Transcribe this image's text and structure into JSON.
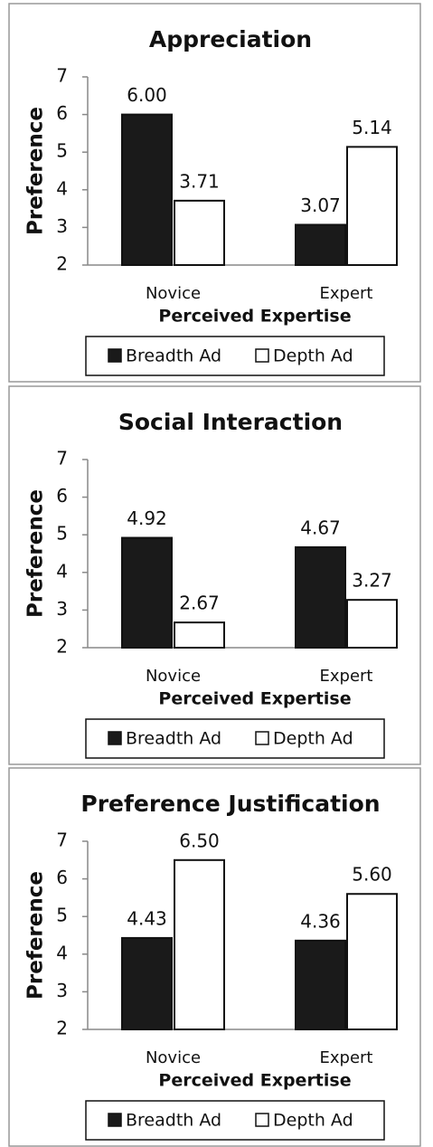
{
  "chart_data": [
    {
      "type": "bar",
      "title": "Appreciation",
      "x_label": "Perceived Expertise",
      "y_label": "Preference",
      "categories": [
        "Novice",
        "Expert"
      ],
      "series": [
        {
          "name": "Breadth Ad",
          "color": "#1a1a1a",
          "values": [
            6.0,
            3.07
          ],
          "value_labels": [
            "6.00",
            "3.07"
          ]
        },
        {
          "name": "Depth Ad",
          "color": "#ffffff",
          "values": [
            3.71,
            5.14
          ],
          "value_labels": [
            "3.71",
            "5.14"
          ]
        }
      ],
      "ylim": [
        2,
        7
      ],
      "yticks": [
        2,
        3,
        4,
        5,
        6,
        7
      ],
      "grid": false,
      "legend": "bottom"
    },
    {
      "type": "bar",
      "title": "Social Interaction",
      "x_label": "Perceived Expertise",
      "y_label": "Preference",
      "categories": [
        "Novice",
        "Expert"
      ],
      "series": [
        {
          "name": "Breadth Ad",
          "color": "#1a1a1a",
          "values": [
            4.92,
            4.67
          ],
          "value_labels": [
            "4.92",
            "4.67"
          ]
        },
        {
          "name": "Depth Ad",
          "color": "#ffffff",
          "values": [
            2.67,
            3.27
          ],
          "value_labels": [
            "2.67",
            "3.27"
          ]
        }
      ],
      "ylim": [
        2,
        7
      ],
      "yticks": [
        2,
        3,
        4,
        5,
        6,
        7
      ],
      "grid": false,
      "legend": "bottom"
    },
    {
      "type": "bar",
      "title": "Preference Justification",
      "x_label": "Perceived Expertise",
      "y_label": "Preference",
      "categories": [
        "Novice",
        "Expert"
      ],
      "series": [
        {
          "name": "Breadth Ad",
          "color": "#1a1a1a",
          "values": [
            4.43,
            4.36
          ],
          "value_labels": [
            "4.43",
            "4.36"
          ]
        },
        {
          "name": "Depth Ad",
          "color": "#ffffff",
          "values": [
            6.5,
            5.6
          ],
          "value_labels": [
            "6.50",
            "5.60"
          ]
        }
      ],
      "ylim": [
        2,
        7
      ],
      "yticks": [
        2,
        3,
        4,
        5,
        6,
        7
      ],
      "grid": false,
      "legend": "bottom"
    }
  ]
}
